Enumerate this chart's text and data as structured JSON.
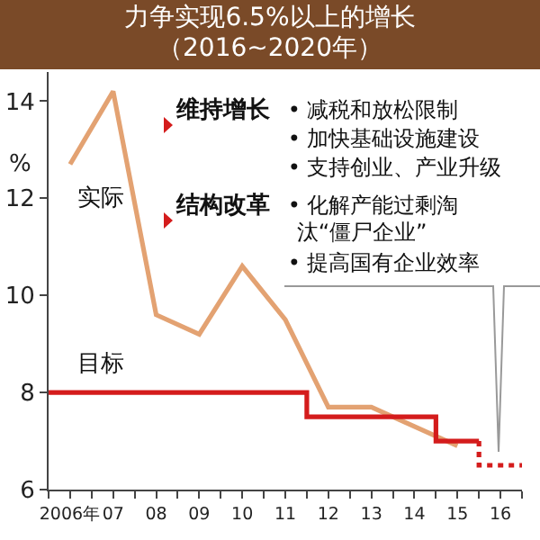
{
  "chart_data": {
    "type": "line",
    "title": "力争实现6.5%以上的增长（2016~2020年）",
    "ylabel": "%",
    "xlim": [
      2005.5,
      2016.5
    ],
    "xticks": [
      {
        "value": 2005.5,
        "label": null
      },
      {
        "value": 2006,
        "label": "2006年"
      },
      {
        "value": 2006.5,
        "label": null
      },
      {
        "value": 2007,
        "label": "07"
      },
      {
        "value": 2007.5,
        "label": null
      },
      {
        "value": 2008,
        "label": "08"
      },
      {
        "value": 2008.5,
        "label": null
      },
      {
        "value": 2009,
        "label": "09"
      },
      {
        "value": 2009.5,
        "label": null
      },
      {
        "value": 2010,
        "label": "10"
      },
      {
        "value": 2010.5,
        "label": null
      },
      {
        "value": 2011,
        "label": "11"
      },
      {
        "value": 2011.5,
        "label": null
      },
      {
        "value": 2012,
        "label": "12"
      },
      {
        "value": 2012.5,
        "label": null
      },
      {
        "value": 2013,
        "label": "13"
      },
      {
        "value": 2013.5,
        "label": null
      },
      {
        "value": 2014,
        "label": "14"
      },
      {
        "value": 2014.5,
        "label": null
      },
      {
        "value": 2015,
        "label": "15"
      },
      {
        "value": 2015.5,
        "label": null
      },
      {
        "value": 2016,
        "label": "16"
      },
      {
        "value": 2016.5,
        "label": null
      }
    ],
    "ylim": [
      6,
      14.6
    ],
    "yticks": [
      6,
      8,
      10,
      12,
      14
    ],
    "grid": false,
    "legend": false,
    "marker": "none",
    "series": [
      {
        "name": "实际",
        "color": "#e3a272",
        "x": [
          2006,
          2007,
          2008,
          2009,
          2010,
          2011,
          2012,
          2013,
          2014,
          2015
        ],
        "values": [
          12.7,
          14.2,
          9.6,
          9.2,
          10.6,
          9.5,
          7.7,
          7.7,
          7.3,
          6.9
        ]
      },
      {
        "name": "目标",
        "type": "step",
        "color": "#d41c1c",
        "x": [
          2005.5,
          2011.5,
          2014.5,
          2015.5
        ],
        "values": [
          8,
          7.5,
          7,
          7
        ]
      },
      {
        "type": "line",
        "color": "#d41c1c",
        "line_style": "dotted",
        "x": [
          2015.5,
          2015.5,
          2016.5
        ],
        "values": [
          7,
          6.5,
          6.5
        ]
      }
    ],
    "annotations": [
      "维持增长",
      "• 减税和放松限制",
      "• 加快基础设施建设",
      "• 支持创业、产业升级",
      "结构改革",
      "• 化解产能过剩淘汰“僵尸企业”",
      "• 提高国有企业效率"
    ]
  }
}
